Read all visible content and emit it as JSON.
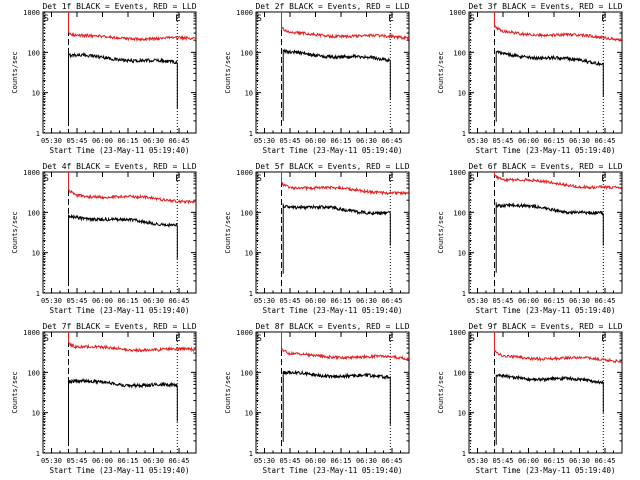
{
  "chart_data": [
    {
      "type": "line",
      "title": "Det 1f BLACK = Events, RED = LLD",
      "xlabel": "Start Time (23-May-11 05:19:40)",
      "ylabel": "Counts/sec",
      "yscale": "log",
      "ylim": [
        1,
        1000
      ],
      "ytick_labels": [
        "1",
        "10",
        "100",
        "1000"
      ],
      "xlim_minutes": [
        5,
        95
      ],
      "xtick_labels": [
        "05:30",
        "05:45",
        "06:00",
        "06:15",
        "06:30",
        "06:45"
      ],
      "markers": {
        "S": "S",
        "E": "E"
      },
      "dashed_line_minute": 20,
      "dotted_line_minute": 84,
      "series": [
        {
          "name": "Events",
          "color": "#000000",
          "start_minute": 20,
          "end_minute": 84,
          "start_value": 85,
          "end_value": 55,
          "final_drop_value": 4
        },
        {
          "name": "LLD",
          "color": "#e02020",
          "start_minute": 20,
          "end_minute": 95,
          "start_value": 250,
          "end_value": 210
        }
      ]
    },
    {
      "type": "line",
      "title": "Det 2f BLACK = Events, RED = LLD",
      "xlabel": "Start Time (23-May-11 05:19:40)",
      "ylabel": "Counts/sec",
      "yscale": "log",
      "ylim": [
        1,
        1000
      ],
      "ytick_labels": [
        "1",
        "10",
        "100",
        "1000"
      ],
      "xlim_minutes": [
        5,
        95
      ],
      "xtick_labels": [
        "05:30",
        "05:45",
        "06:00",
        "06:15",
        "06:30",
        "06:45"
      ],
      "markers": {
        "S": "S",
        "E": "E"
      },
      "dashed_line_minute": 20,
      "dotted_line_minute": 84,
      "series": [
        {
          "name": "Events",
          "color": "#000000",
          "start_minute": 21,
          "end_minute": 84,
          "start_value": 100,
          "end_value": 65,
          "final_drop_value": 7
        },
        {
          "name": "LLD",
          "color": "#e02020",
          "start_minute": 20,
          "end_minute": 95,
          "start_value": 300,
          "end_value": 230
        }
      ]
    },
    {
      "type": "line",
      "title": "Det 3f BLACK = Events, RED = LLD",
      "xlabel": "Start Time (23-May-11 05:19:40)",
      "ylabel": "Counts/sec",
      "yscale": "log",
      "ylim": [
        1,
        1000
      ],
      "ytick_labels": [
        "1",
        "10",
        "100",
        "1000"
      ],
      "xlim_minutes": [
        5,
        95
      ],
      "xtick_labels": [
        "05:30",
        "05:45",
        "06:00",
        "06:15",
        "06:30",
        "06:45"
      ],
      "markers": {
        "S": "S",
        "E": "E"
      },
      "dashed_line_minute": 20,
      "dotted_line_minute": 84,
      "series": [
        {
          "name": "Events",
          "color": "#000000",
          "start_minute": 21,
          "end_minute": 84,
          "start_value": 95,
          "end_value": 55,
          "final_drop_value": 8
        },
        {
          "name": "LLD",
          "color": "#e02020",
          "start_minute": 20,
          "end_minute": 95,
          "start_value": 330,
          "end_value": 220
        }
      ]
    },
    {
      "type": "line",
      "title": "Det 4f BLACK = Events, RED = LLD",
      "xlabel": "Start Time (23-May-11 05:19:40)",
      "ylabel": "Counts/sec",
      "yscale": "log",
      "ylim": [
        1,
        1000
      ],
      "ytick_labels": [
        "1",
        "10",
        "100",
        "1000"
      ],
      "xlim_minutes": [
        5,
        95
      ],
      "xtick_labels": [
        "05:30",
        "05:45",
        "06:00",
        "06:15",
        "06:30",
        "06:45"
      ],
      "markers": {
        "S": "S",
        "E": "E"
      },
      "dashed_line_minute": 20,
      "dotted_line_minute": 84,
      "series": [
        {
          "name": "Events",
          "color": "#000000",
          "start_minute": 20,
          "end_minute": 84,
          "start_value": 80,
          "end_value": 50,
          "final_drop_value": 7
        },
        {
          "name": "LLD",
          "color": "#e02020",
          "start_minute": 20,
          "end_minute": 95,
          "start_value": 280,
          "end_value": 190
        }
      ]
    },
    {
      "type": "line",
      "title": "Det 5f BLACK = Events, RED = LLD",
      "xlabel": "Start Time (23-May-11 05:19:40)",
      "ylabel": "Counts/sec",
      "yscale": "log",
      "ylim": [
        1,
        1000
      ],
      "ytick_labels": [
        "1",
        "10",
        "100",
        "1000"
      ],
      "xlim_minutes": [
        5,
        95
      ],
      "xtick_labels": [
        "05:30",
        "05:45",
        "06:00",
        "06:15",
        "06:30",
        "06:45"
      ],
      "markers": {
        "S": "S",
        "E": "E"
      },
      "dashed_line_minute": 20,
      "dotted_line_minute": 84,
      "series": [
        {
          "name": "Events",
          "color": "#000000",
          "start_minute": 21,
          "end_minute": 84,
          "start_value": 150,
          "end_value": 95,
          "final_drop_value": 15
        },
        {
          "name": "LLD",
          "color": "#e02020",
          "start_minute": 20,
          "end_minute": 95,
          "start_value": 450,
          "end_value": 300
        }
      ]
    },
    {
      "type": "line",
      "title": "Det 6f BLACK = Events, RED = LLD",
      "xlabel": "Start Time (23-May-11 05:19:40)",
      "ylabel": "Counts/sec",
      "yscale": "log",
      "ylim": [
        1,
        1000
      ],
      "ytick_labels": [
        "1",
        "10",
        "100",
        "1000"
      ],
      "xlim_minutes": [
        5,
        95
      ],
      "xtick_labels": [
        "05:30",
        "05:45",
        "06:00",
        "06:15",
        "06:30",
        "06:45"
      ],
      "markers": {
        "S": "S",
        "E": "E"
      },
      "dashed_line_minute": 20,
      "dotted_line_minute": 84,
      "series": [
        {
          "name": "Events",
          "color": "#000000",
          "start_minute": 21,
          "end_minute": 84,
          "start_value": 160,
          "end_value": 90,
          "final_drop_value": 15
        },
        {
          "name": "LLD",
          "color": "#e02020",
          "start_minute": 20,
          "end_minute": 95,
          "start_value": 700,
          "end_value": 380
        }
      ]
    },
    {
      "type": "line",
      "title": "Det 7f BLACK = Events, RED = LLD",
      "xlabel": "Start Time (23-May-11 05:19:40)",
      "ylabel": "Counts/sec",
      "yscale": "log",
      "ylim": [
        1,
        1000
      ],
      "ytick_labels": [
        "1",
        "10",
        "100",
        "1000"
      ],
      "xlim_minutes": [
        5,
        95
      ],
      "xtick_labels": [
        "05:30",
        "05:45",
        "06:00",
        "06:15",
        "06:30",
        "06:45"
      ],
      "markers": {
        "S": "S",
        "E": "E"
      },
      "dashed_line_minute": 20,
      "dotted_line_minute": 84,
      "series": [
        {
          "name": "Events",
          "color": "#000000",
          "start_minute": 20,
          "end_minute": 84,
          "start_value": 60,
          "end_value": 45,
          "final_drop_value": 6
        },
        {
          "name": "LLD",
          "color": "#e02020",
          "start_minute": 20,
          "end_minute": 95,
          "start_value": 420,
          "end_value": 350
        }
      ]
    },
    {
      "type": "line",
      "title": "Det 8f BLACK = Events, RED = LLD",
      "xlabel": "Start Time (23-May-11 05:19:40)",
      "ylabel": "Counts/sec",
      "yscale": "log",
      "ylim": [
        1,
        1000
      ],
      "ytick_labels": [
        "1",
        "10",
        "100",
        "1000"
      ],
      "xlim_minutes": [
        5,
        95
      ],
      "xtick_labels": [
        "05:30",
        "05:45",
        "06:00",
        "06:15",
        "06:30",
        "06:45"
      ],
      "markers": {
        "S": "S",
        "E": "E"
      },
      "dashed_line_minute": 20,
      "dotted_line_minute": 84,
      "series": [
        {
          "name": "Events",
          "color": "#000000",
          "start_minute": 21,
          "end_minute": 84,
          "start_value": 95,
          "end_value": 75,
          "final_drop_value": 5
        },
        {
          "name": "LLD",
          "color": "#e02020",
          "start_minute": 20,
          "end_minute": 95,
          "start_value": 280,
          "end_value": 220
        }
      ]
    },
    {
      "type": "line",
      "title": "Det 9f BLACK = Events, RED = LLD",
      "xlabel": "Start Time (23-May-11 05:19:40)",
      "ylabel": "Counts/sec",
      "yscale": "log",
      "ylim": [
        1,
        1000
      ],
      "ytick_labels": [
        "1",
        "10",
        "100",
        "1000"
      ],
      "xlim_minutes": [
        5,
        95
      ],
      "xtick_labels": [
        "05:30",
        "05:45",
        "06:00",
        "06:15",
        "06:30",
        "06:45"
      ],
      "markers": {
        "S": "S",
        "E": "E"
      },
      "dashed_line_minute": 20,
      "dotted_line_minute": 84,
      "series": [
        {
          "name": "Events",
          "color": "#000000",
          "start_minute": 21,
          "end_minute": 84,
          "start_value": 80,
          "end_value": 60,
          "final_drop_value": 10
        },
        {
          "name": "LLD",
          "color": "#e02020",
          "start_minute": 20,
          "end_minute": 95,
          "start_value": 250,
          "end_value": 200
        }
      ]
    }
  ]
}
